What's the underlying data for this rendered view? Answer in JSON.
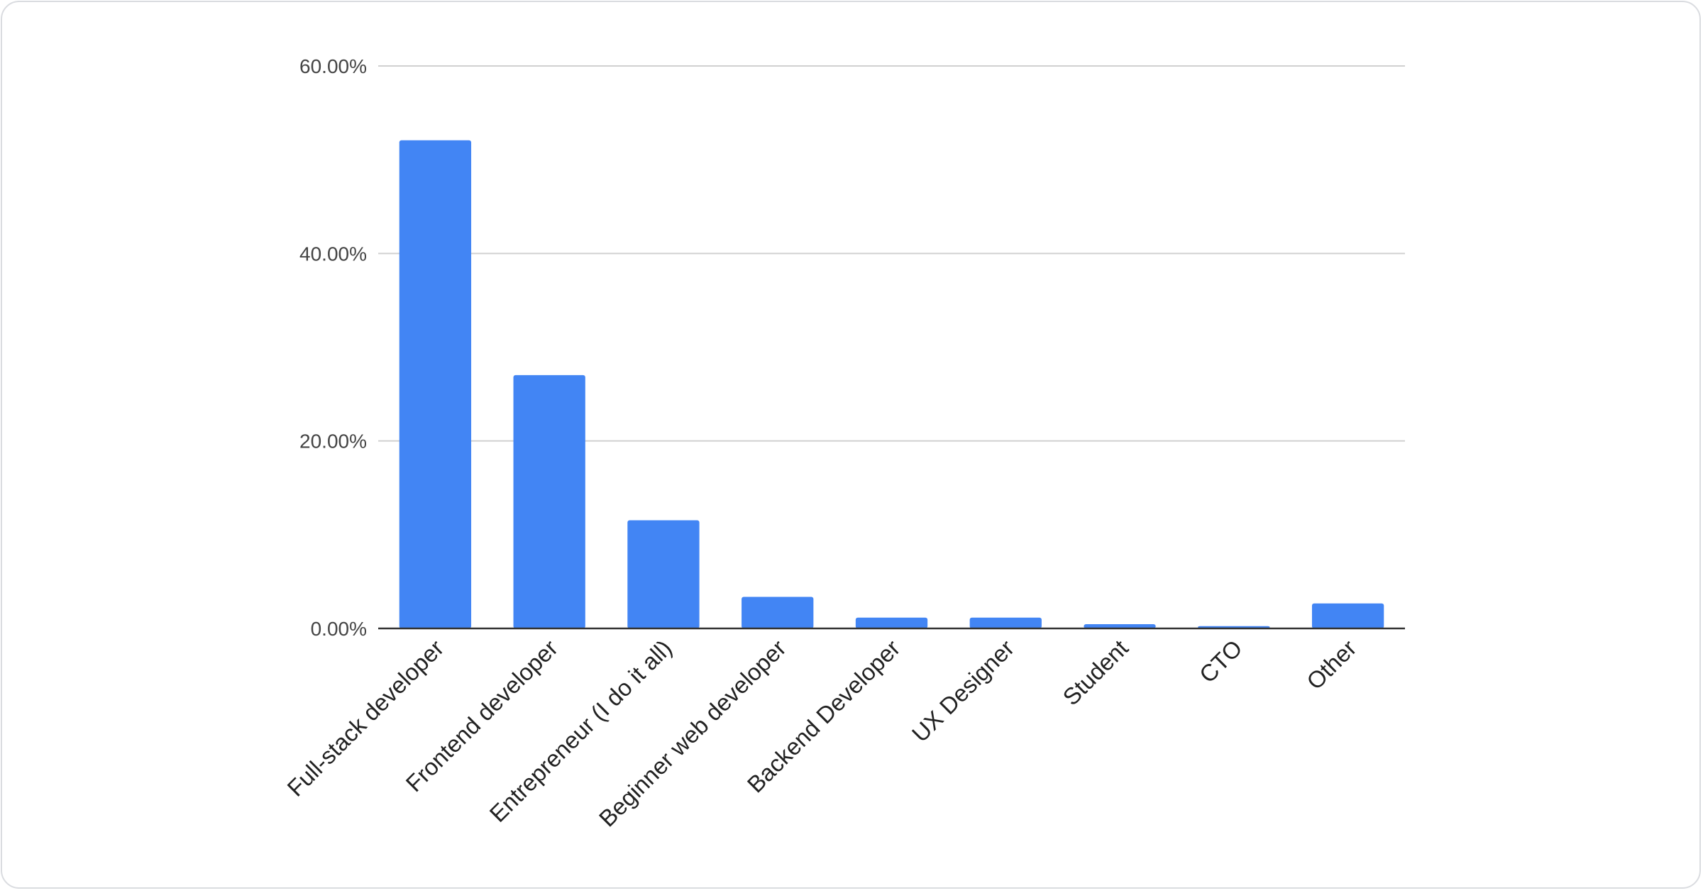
{
  "chart_data": {
    "type": "bar",
    "categories": [
      "Full-stack developer",
      "Frontend developer",
      "Entrepreneur (I do it all)",
      "Beginner web developer",
      "Backend Developer",
      "UX Designer",
      "Student",
      "CTO",
      "Other"
    ],
    "values": [
      52.07,
      27.02,
      11.54,
      3.37,
      1.15,
      1.15,
      0.45,
      0.25,
      2.67
    ],
    "title": "",
    "xlabel": "",
    "ylabel": "",
    "ylim": [
      0,
      60
    ],
    "yticks": [
      "0.00%",
      "20.00%",
      "40.00%",
      "60.00%"
    ],
    "grid": true,
    "legend": "none",
    "bar_color": "#4285f4"
  }
}
